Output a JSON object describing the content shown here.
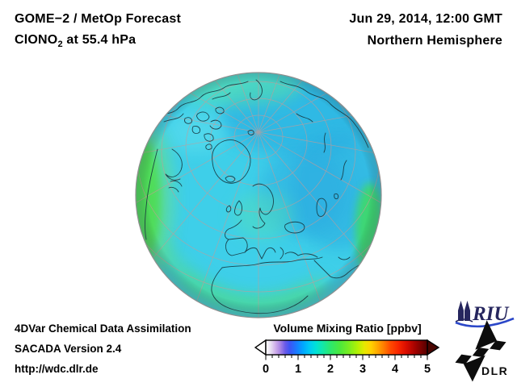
{
  "header": {
    "title_line1": "GOME−2 / MetOp Forecast",
    "species": "ClONO",
    "species_sub": "2",
    "level_suffix": " at 55.4 hPa",
    "datetime": "Jun 29, 2014, 12:00 GMT",
    "hemisphere": "Northern Hemisphere"
  },
  "footer": {
    "line1": "4DVar Chemical Data Assimilation",
    "line2": "SACADA Version 2.4",
    "line3": "http://wdc.dlr.de"
  },
  "colorbar": {
    "title": "Volume Mixing Ratio [ppbv]",
    "tick_labels": [
      "0",
      "1",
      "2",
      "3",
      "4",
      "5"
    ]
  },
  "logos": {
    "riu_label": "RIU",
    "dlr_label": "DLR"
  },
  "chart_data": {
    "type": "heatmap",
    "title": "GOME−2 / MetOp Forecast, ClONO2 at 55.4 hPa",
    "datetime": "Jun 29, 2014, 12:00 GMT",
    "projection": "orthographic globe, Northern Hemisphere, centered near North Pole",
    "colorbar": {
      "label": "Volume Mixing Ratio [ppbv]",
      "range": [
        0,
        5
      ],
      "ticks": [
        0,
        1,
        2,
        3,
        4,
        5
      ],
      "minor_tick_step": 0.2,
      "out_of_range_arrows": {
        "low_color": "#ffffff",
        "high_color": "#4a0500"
      },
      "gradient_stops": [
        {
          "pos": 0.0,
          "color": "#ffffff"
        },
        {
          "pos": 0.03,
          "color": "#e8e0f2"
        },
        {
          "pos": 0.06,
          "color": "#cfaeea"
        },
        {
          "pos": 0.09,
          "color": "#a883e4"
        },
        {
          "pos": 0.12,
          "color": "#6a5ae8"
        },
        {
          "pos": 0.15,
          "color": "#3b55f5"
        },
        {
          "pos": 0.19,
          "color": "#1a7bff"
        },
        {
          "pos": 0.23,
          "color": "#00a6ff"
        },
        {
          "pos": 0.27,
          "color": "#00c9f5"
        },
        {
          "pos": 0.31,
          "color": "#00e2d8"
        },
        {
          "pos": 0.35,
          "color": "#12e7ab"
        },
        {
          "pos": 0.4,
          "color": "#2ce86e"
        },
        {
          "pos": 0.46,
          "color": "#4ce93c"
        },
        {
          "pos": 0.52,
          "color": "#7eee1e"
        },
        {
          "pos": 0.57,
          "color": "#b4f104"
        },
        {
          "pos": 0.61,
          "color": "#e6e800"
        },
        {
          "pos": 0.65,
          "color": "#ffd300"
        },
        {
          "pos": 0.69,
          "color": "#ffaa00"
        },
        {
          "pos": 0.73,
          "color": "#ff7d00"
        },
        {
          "pos": 0.77,
          "color": "#ff4c00"
        },
        {
          "pos": 0.82,
          "color": "#f92600"
        },
        {
          "pos": 0.87,
          "color": "#d90d00"
        },
        {
          "pos": 0.92,
          "color": "#a80300"
        },
        {
          "pos": 1.0,
          "color": "#530000"
        }
      ]
    },
    "field_summary": [
      {
        "region": "most of hemisphere (background)",
        "value_ppbv": 1.5
      },
      {
        "region": "north-eastern sector / Siberia side (darker blue)",
        "value_ppbv": 1.2
      },
      {
        "region": "top limb band (green-cyan)",
        "value_ppbv": 1.8
      },
      {
        "region": "western limb, North America west coast (bright green band)",
        "value_ppbv": 2.4
      },
      {
        "region": "southern limb arc over West Africa / Atlantic (green)",
        "value_ppbv": 2.2
      },
      {
        "region": "south-eastern limb near Arabia (green)",
        "value_ppbv": 2.3
      },
      {
        "region": "Scandinavia patch (green-cyan)",
        "value_ppbv": 1.9
      }
    ]
  }
}
